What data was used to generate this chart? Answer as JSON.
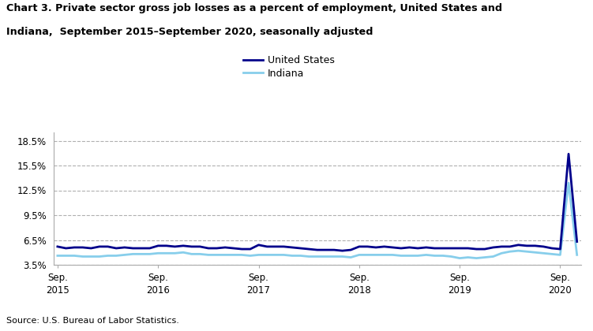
{
  "title_line1": "Chart 3. Private sector gross job losses as a percent of employment, United States and",
  "title_line2": "Indiana,  September 2015–September 2020, seasonally adjusted",
  "source": "Source: U.S. Bureau of Labor Statistics.",
  "legend_labels": [
    "United States",
    "Indiana"
  ],
  "us_color": "#00008B",
  "indiana_color": "#87CEEB",
  "us_linewidth": 2.0,
  "indiana_linewidth": 2.0,
  "ylim": [
    3.5,
    19.5
  ],
  "yticks": [
    3.5,
    6.5,
    9.5,
    12.5,
    15.5,
    18.5
  ],
  "ytick_labels": [
    "3.5%",
    "6.5%",
    "9.5%",
    "12.5%",
    "15.5%",
    "18.5%"
  ],
  "xtick_positions": [
    0,
    12,
    24,
    36,
    48,
    60
  ],
  "xtick_labels": [
    "Sep.\n2015",
    "Sep.\n2016",
    "Sep.\n2017",
    "Sep.\n2018",
    "Sep.\n2019",
    "Sep.\n2020"
  ],
  "us_values": [
    5.7,
    5.5,
    5.6,
    5.6,
    5.5,
    5.7,
    5.7,
    5.5,
    5.6,
    5.5,
    5.5,
    5.5,
    5.8,
    5.8,
    5.7,
    5.8,
    5.7,
    5.7,
    5.5,
    5.5,
    5.6,
    5.5,
    5.4,
    5.4,
    5.9,
    5.7,
    5.7,
    5.7,
    5.6,
    5.5,
    5.4,
    5.3,
    5.3,
    5.3,
    5.2,
    5.3,
    5.7,
    5.7,
    5.6,
    5.7,
    5.6,
    5.5,
    5.6,
    5.5,
    5.6,
    5.5,
    5.5,
    5.5,
    5.5,
    5.5,
    5.4,
    5.4,
    5.6,
    5.7,
    5.7,
    5.9,
    5.8,
    5.8,
    5.7,
    5.5,
    5.4,
    16.9,
    6.3
  ],
  "indiana_values": [
    4.6,
    4.6,
    4.6,
    4.5,
    4.5,
    4.5,
    4.6,
    4.6,
    4.7,
    4.8,
    4.8,
    4.8,
    4.9,
    4.9,
    4.9,
    5.0,
    4.8,
    4.8,
    4.7,
    4.7,
    4.7,
    4.7,
    4.7,
    4.6,
    4.7,
    4.7,
    4.7,
    4.7,
    4.6,
    4.6,
    4.5,
    4.5,
    4.5,
    4.5,
    4.5,
    4.4,
    4.7,
    4.7,
    4.7,
    4.7,
    4.7,
    4.6,
    4.6,
    4.6,
    4.7,
    4.6,
    4.6,
    4.5,
    4.3,
    4.4,
    4.3,
    4.4,
    4.5,
    4.9,
    5.1,
    5.2,
    5.1,
    5.0,
    4.9,
    4.8,
    4.7,
    13.4,
    4.7
  ],
  "background_color": "#ffffff",
  "grid_color": "#b0b0b0",
  "spine_color": "#aaaaaa"
}
